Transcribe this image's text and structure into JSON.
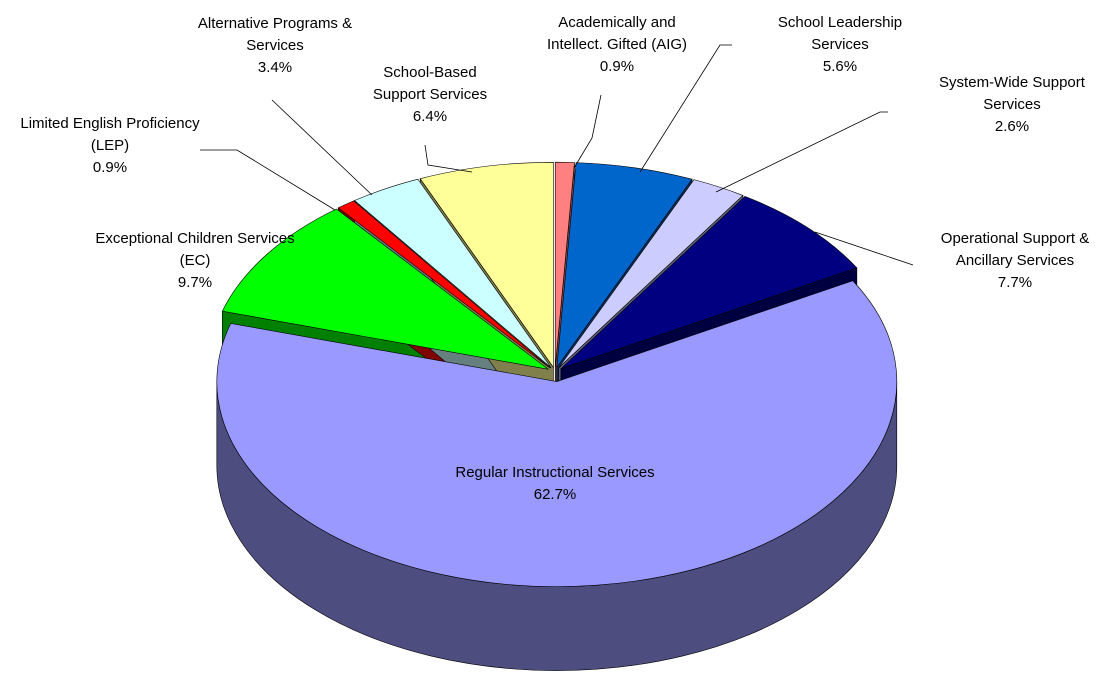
{
  "chart_data": {
    "type": "pie",
    "categories": [
      "Academically and\nIntellect. Gifted (AIG)",
      "School Leadership\nServices",
      "System-Wide Support\nServices",
      "Operational Support &\nAncillary Services",
      "Regular Instructional Services",
      "Exceptional Children Services\n(EC)",
      "Limited English Proficiency\n(LEP)",
      "Alternative Programs &\nServices",
      "School-Based\nSupport Services"
    ],
    "values": [
      0.9,
      5.6,
      2.6,
      7.7,
      62.7,
      9.7,
      0.9,
      3.4,
      6.4
    ],
    "value_labels": [
      "0.9%",
      "5.6%",
      "2.6%",
      "7.7%",
      "62.7%",
      "9.7%",
      "0.9%",
      "3.4%",
      "6.4%"
    ],
    "colors": [
      "#ff8080",
      "#0066cc",
      "#ccccff",
      "#000080",
      "#9999ff",
      "#00ff00",
      "#ff0000",
      "#ccffff",
      "#ffff99"
    ]
  }
}
